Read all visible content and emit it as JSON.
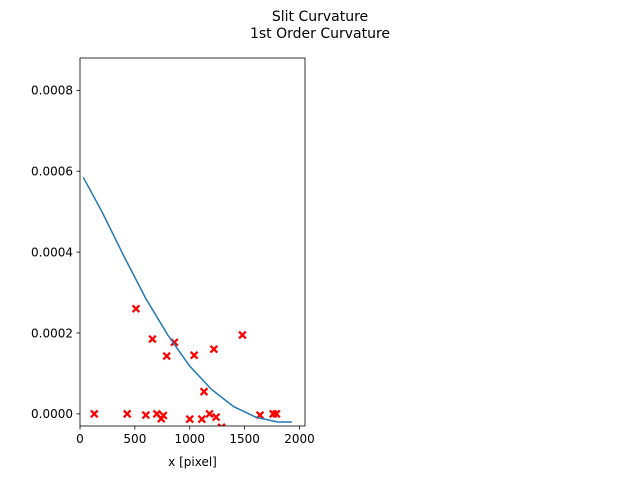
{
  "figure": {
    "title_line1": "Slit Curvature",
    "title_line2": "1st Order Curvature"
  },
  "chart_data": {
    "type": "scatter",
    "title": "Slit Curvature\n1st Order Curvature",
    "xlabel": "x [pixel]",
    "ylabel": "",
    "xlim": [
      0,
      2050
    ],
    "ylim": [
      -3e-05,
      0.00088
    ],
    "xticks": [
      0,
      500,
      1000,
      1500,
      2000
    ],
    "xtick_labels": [
      "0",
      "500",
      "1000",
      "1500",
      "2000"
    ],
    "yticks": [
      0.0,
      0.0002,
      0.0004,
      0.0006,
      0.0008
    ],
    "ytick_labels": [
      "0.0000",
      "0.0002",
      "0.0004",
      "0.0006",
      "0.0008"
    ],
    "grid": false,
    "series": [
      {
        "kind": "scatter",
        "marker": "X",
        "color": "#ff0000",
        "points": [
          [
            130,
            0.0
          ],
          [
            430,
            0.0
          ],
          [
            510,
            0.00026
          ],
          [
            600,
            -3e-06
          ],
          [
            660,
            0.000185
          ],
          [
            700,
            0.0
          ],
          [
            740,
            -1.2e-05
          ],
          [
            760,
            -4e-06
          ],
          [
            790,
            0.000143
          ],
          [
            860,
            0.000177
          ],
          [
            1000,
            -1.3e-05
          ],
          [
            1040,
            0.000145
          ],
          [
            1110,
            -1.3e-05
          ],
          [
            1130,
            5.5e-05
          ],
          [
            1180,
            0.0
          ],
          [
            1220,
            0.00016
          ],
          [
            1240,
            -8e-06
          ],
          [
            1290,
            -3.3e-05
          ],
          [
            1480,
            0.000195
          ],
          [
            1640,
            -3e-06
          ],
          [
            1760,
            0.0
          ],
          [
            1790,
            0.0
          ]
        ]
      },
      {
        "kind": "line",
        "color": "#1f77b4",
        "points": [
          [
            30,
            0.000585
          ],
          [
            200,
            0.0005
          ],
          [
            400,
            0.00039
          ],
          [
            600,
            0.000285
          ],
          [
            800,
            0.000195
          ],
          [
            1000,
            0.000118
          ],
          [
            1200,
            6e-05
          ],
          [
            1400,
            1.8e-05
          ],
          [
            1600,
            -8e-06
          ],
          [
            1800,
            -2e-05
          ],
          [
            1930,
            -2e-05
          ]
        ]
      }
    ]
  }
}
